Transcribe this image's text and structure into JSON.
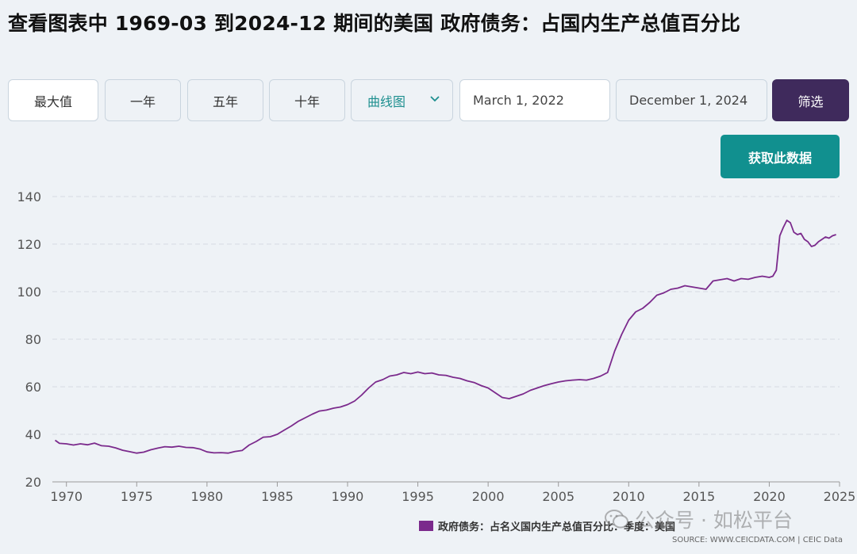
{
  "title": "查看图表中 1969-03 到2024-12 期间的美国 政府债务：占国内生产总值百分比",
  "controls": {
    "ranges": [
      "最大值",
      "一年",
      "五年",
      "十年"
    ],
    "chart_type": "曲线图",
    "start_date": "March 1, 2022",
    "end_date": "December 1, 2024",
    "filter_label": "筛选",
    "get_data_label": "获取此数据"
  },
  "legend_label": "政府债务：占名义国内生产总值百分比：季度：美国",
  "source": "SOURCE: WWW.CEICDATA.COM | CEIC Data",
  "watermark": "公众号 · 如松平台",
  "colors": {
    "line": "#7b2a8c",
    "accent": "#11908f",
    "filter": "#3f2a5c"
  },
  "chart_data": {
    "type": "line",
    "title": "",
    "xlabel": "",
    "ylabel": "",
    "xlim": [
      1969.0,
      2025.0
    ],
    "ylim": [
      20,
      140
    ],
    "yticks": [
      20,
      40,
      60,
      80,
      100,
      120,
      140
    ],
    "xticks": [
      1970,
      1975,
      1980,
      1985,
      1990,
      1995,
      2000,
      2005,
      2010,
      2015,
      2020,
      2025
    ],
    "grid": true,
    "legend_position": "bottom-right",
    "series": [
      {
        "name": "政府债务：占名义国内生产总值百分比：季度：美国",
        "x": [
          1969.2,
          1969.5,
          1970.0,
          1970.5,
          1971.0,
          1971.5,
          1972.0,
          1972.5,
          1973.0,
          1973.5,
          1974.0,
          1974.5,
          1975.0,
          1975.5,
          1976.0,
          1976.5,
          1977.0,
          1977.5,
          1978.0,
          1978.5,
          1979.0,
          1979.5,
          1980.0,
          1980.5,
          1981.0,
          1981.5,
          1982.0,
          1982.5,
          1983.0,
          1983.5,
          1984.0,
          1984.5,
          1985.0,
          1985.5,
          1986.0,
          1986.5,
          1987.0,
          1987.5,
          1988.0,
          1988.5,
          1989.0,
          1989.5,
          1990.0,
          1990.5,
          1991.0,
          1991.5,
          1992.0,
          1992.5,
          1993.0,
          1993.5,
          1994.0,
          1994.5,
          1995.0,
          1995.5,
          1996.0,
          1996.5,
          1997.0,
          1997.5,
          1998.0,
          1998.5,
          1999.0,
          1999.5,
          2000.0,
          2000.5,
          2001.0,
          2001.5,
          2002.0,
          2002.5,
          2003.0,
          2003.5,
          2004.0,
          2004.5,
          2005.0,
          2005.5,
          2006.0,
          2006.5,
          2007.0,
          2007.5,
          2008.0,
          2008.5,
          2009.0,
          2009.5,
          2010.0,
          2010.5,
          2011.0,
          2011.5,
          2012.0,
          2012.5,
          2013.0,
          2013.5,
          2014.0,
          2014.5,
          2015.0,
          2015.5,
          2016.0,
          2016.5,
          2017.0,
          2017.5,
          2018.0,
          2018.5,
          2019.0,
          2019.5,
          2020.0,
          2020.25,
          2020.5,
          2020.75,
          2021.0,
          2021.25,
          2021.5,
          2021.75,
          2022.0,
          2022.25,
          2022.5,
          2022.75,
          2023.0,
          2023.25,
          2023.5,
          2023.75,
          2024.0,
          2024.25,
          2024.5,
          2024.75
        ],
        "values": [
          37.5,
          36.2,
          36.0,
          35.5,
          36.0,
          35.6,
          36.3,
          35.2,
          35.0,
          34.3,
          33.3,
          32.7,
          32.1,
          32.5,
          33.5,
          34.2,
          34.8,
          34.6,
          35.0,
          34.5,
          34.4,
          33.8,
          32.6,
          32.2,
          32.3,
          32.1,
          32.8,
          33.2,
          35.5,
          37.0,
          38.8,
          39.0,
          40.0,
          41.8,
          43.5,
          45.5,
          47.0,
          48.5,
          49.8,
          50.2,
          51.0,
          51.5,
          52.5,
          54.0,
          56.5,
          59.5,
          62.0,
          63.0,
          64.5,
          65.0,
          66.0,
          65.5,
          66.2,
          65.5,
          65.8,
          65.0,
          64.8,
          64.0,
          63.5,
          62.5,
          61.8,
          60.5,
          59.5,
          57.5,
          55.5,
          55.0,
          56.0,
          57.0,
          58.5,
          59.5,
          60.5,
          61.3,
          62.0,
          62.5,
          62.8,
          63.0,
          62.8,
          63.5,
          64.5,
          66.0,
          75.0,
          82.0,
          88.0,
          91.5,
          93.0,
          95.5,
          98.5,
          99.5,
          101.0,
          101.5,
          102.5,
          102.0,
          101.5,
          101.0,
          104.5,
          105.0,
          105.5,
          104.5,
          105.5,
          105.2,
          106.0,
          106.5,
          106.0,
          106.5,
          109.0,
          123.5,
          127.0,
          130.0,
          129.0,
          125.0,
          124.0,
          124.5,
          122.0,
          121.0,
          119.0,
          119.5,
          121.0,
          122.0,
          123.0,
          122.5,
          123.5,
          124.0
        ]
      }
    ]
  }
}
